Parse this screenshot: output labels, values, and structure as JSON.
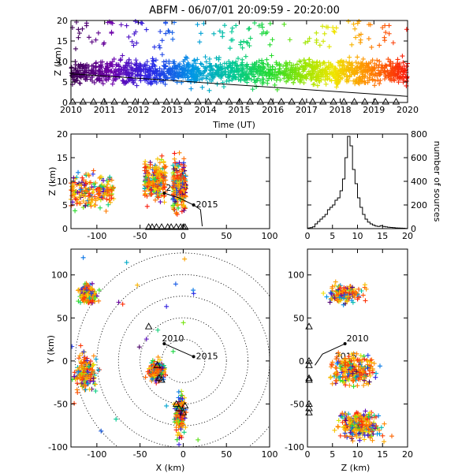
{
  "title": "ABFM - 06/07/01 20:09:59 - 20:20:00",
  "chart_data": [
    {
      "id": "time_series",
      "type": "scatter",
      "title": "ABFM - 06/07/01 20:09:59 - 20:20:00",
      "xlabel": "Time (UT)",
      "ylabel": "Z (km)",
      "xlim": [
        2010,
        2020
      ],
      "ylim": [
        0,
        20
      ],
      "xticks": [
        "2010",
        "2011",
        "2012",
        "2013",
        "2014",
        "2015",
        "2016",
        "2017",
        "2018",
        "2019",
        "2020"
      ],
      "yticks": [
        "0",
        "5",
        "10",
        "15",
        "20"
      ],
      "trend_line": {
        "x": [
          2010,
          2020
        ],
        "y": [
          7.0,
          1.5
        ]
      },
      "color_scale": "time: purple (2010) to red (2020)",
      "typical_altitude_range_km": [
        2,
        13
      ],
      "station_marker": "triangle at Z=0"
    },
    {
      "id": "xz_projection",
      "type": "scatter",
      "xlabel": "",
      "ylabel": "Z (km)",
      "xlim": [
        -130,
        100
      ],
      "ylim": [
        0,
        20
      ],
      "xticks": [
        "-100",
        "-50",
        "0",
        "50",
        "100"
      ],
      "yticks": [
        "0",
        "5",
        "10",
        "15",
        "20"
      ],
      "clusters": [
        {
          "x_range": [
            -130,
            -80
          ],
          "z_range": [
            2,
            14
          ]
        },
        {
          "x_range": [
            -45,
            -20
          ],
          "z_range": [
            3,
            17
          ]
        },
        {
          "x_range": [
            -12,
            3
          ],
          "z_range": [
            0,
            18
          ]
        }
      ],
      "track": {
        "start_label": "2010",
        "end_label": "2015",
        "x": [
          -22,
          12
        ],
        "z": [
          7.5,
          5
        ]
      },
      "stations_x": [
        -40,
        -36,
        -31,
        -25,
        -18,
        -14,
        -8,
        -3,
        0,
        2
      ]
    },
    {
      "id": "histogram",
      "type": "bar",
      "xlabel": "",
      "ylabel": "number of sources",
      "xlim": [
        0,
        20
      ],
      "ylim": [
        0,
        800
      ],
      "xticks": [
        "0",
        "5",
        "10",
        "15",
        "20"
      ],
      "yticks": [
        "0",
        "200",
        "400",
        "600",
        "800"
      ],
      "bin_width_km": 0.5,
      "bins_start": [
        0,
        0.5,
        1,
        1.5,
        2,
        2.5,
        3,
        3.5,
        4,
        4.5,
        5,
        5.5,
        6,
        6.5,
        7,
        7.5,
        8,
        8.5,
        9,
        9.5,
        10,
        10.5,
        11,
        11.5,
        12,
        12.5,
        13,
        13.5,
        14,
        14.5,
        15,
        15.5,
        16,
        16.5,
        17,
        17.5,
        18,
        18.5,
        19,
        19.5
      ],
      "values": [
        5,
        8,
        15,
        40,
        60,
        80,
        100,
        120,
        160,
        180,
        200,
        240,
        260,
        320,
        420,
        600,
        780,
        700,
        500,
        380,
        260,
        180,
        120,
        80,
        55,
        40,
        30,
        22,
        18,
        25,
        18,
        15,
        12,
        10,
        8,
        6,
        5,
        4,
        3,
        2
      ]
    },
    {
      "id": "xy_plan",
      "type": "scatter",
      "xlabel": "X (km)",
      "ylabel": "Y (km)",
      "xlim": [
        -130,
        100
      ],
      "ylim": [
        -100,
        130
      ],
      "xticks": [
        "-100",
        "-50",
        "0",
        "50",
        "100"
      ],
      "yticks": [
        "-100",
        "-50",
        "0",
        "50",
        "100"
      ],
      "range_rings_km": [
        25,
        50,
        75,
        100,
        125
      ],
      "ring_center": [
        0,
        0
      ],
      "clusters": [
        {
          "x_range": [
            -125,
            -95
          ],
          "y_range": [
            60,
            95
          ]
        },
        {
          "x_range": [
            -130,
            -95
          ],
          "y_range": [
            -45,
            20
          ]
        },
        {
          "x_range": [
            -45,
            -15
          ],
          "y_range": [
            -30,
            5
          ]
        },
        {
          "x_range": [
            -12,
            5
          ],
          "y_range": [
            -100,
            -25
          ]
        }
      ],
      "track": {
        "start_label": "2010",
        "end_label": "2015",
        "x": [
          -22,
          12
        ],
        "y": [
          20,
          5
        ]
      },
      "stations": [
        [
          -40,
          40
        ],
        [
          -30,
          -5
        ],
        [
          -28,
          -20
        ],
        [
          -25,
          -22
        ],
        [
          -8,
          -50
        ],
        [
          -5,
          -55
        ],
        [
          0,
          -60
        ],
        [
          2,
          -52
        ]
      ]
    },
    {
      "id": "zy_projection",
      "type": "scatter",
      "xlabel": "Z (km)",
      "ylabel": "",
      "xlim": [
        0,
        20
      ],
      "ylim": [
        -100,
        130
      ],
      "xticks": [
        "0",
        "5",
        "10",
        "15",
        "20"
      ],
      "yticks": [
        "-100",
        "-50",
        "0",
        "50",
        "100"
      ],
      "clusters": [
        {
          "z_range": [
            1,
            14
          ],
          "y_range": [
            60,
            95
          ]
        },
        {
          "z_range": [
            2,
            16
          ],
          "y_range": [
            -40,
            20
          ]
        },
        {
          "z_range": [
            3,
            18
          ],
          "y_range": [
            -100,
            -50
          ]
        }
      ],
      "track": {
        "start_label": "2010",
        "end_label": "2015",
        "z": [
          7.5,
          5
        ],
        "y": [
          20,
          5
        ]
      }
    }
  ],
  "annotations": {
    "track_start": "2010",
    "track_end": "2015"
  }
}
